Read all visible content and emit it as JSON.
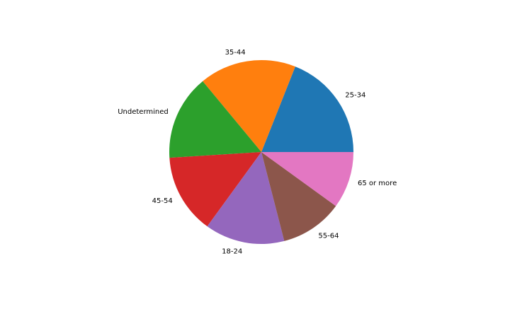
{
  "chart_data": {
    "type": "pie",
    "title": "",
    "categories": [
      "25-34",
      "35-44",
      "Undetermined",
      "45-54",
      "18-24",
      "55-64",
      "65 or more"
    ],
    "values": [
      19.0,
      17.0,
      15.0,
      14.0,
      14.0,
      11.0,
      10.0
    ],
    "colors": [
      "#1f77b4",
      "#ff7f0e",
      "#2ca02c",
      "#d62728",
      "#9467bd",
      "#8c564b",
      "#e377c2"
    ],
    "start_angle_deg": 0,
    "direction": "counterclockwise",
    "legend": "none"
  }
}
